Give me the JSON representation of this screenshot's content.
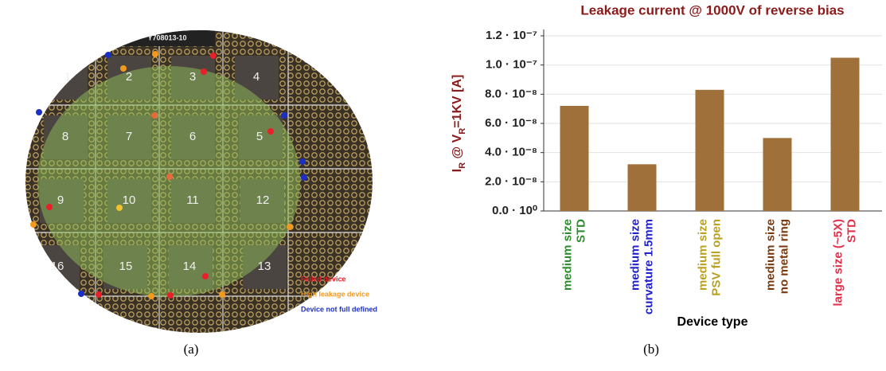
{
  "wafer": {
    "id_label": "Y708013-10",
    "die_labels": [
      "1",
      "2",
      "3",
      "4",
      "8",
      "7",
      "6",
      "5",
      "9",
      "10",
      "11",
      "12",
      "16",
      "15",
      "14",
      "13"
    ],
    "legend": [
      {
        "text": "Failed device",
        "color": "#e8202a"
      },
      {
        "text": "High leakage device",
        "color": "#f29a1e"
      },
      {
        "text": "Device not full defined",
        "color": "#1c2fc4"
      }
    ],
    "caption": "(a)"
  },
  "chart_data": {
    "type": "bar",
    "title": "Leakage current @ 1000V of reverse bias",
    "y_label_parts": [
      "I",
      "R",
      " @ V",
      "R",
      "=1KV [A]"
    ],
    "x_label": "Device type",
    "categories": [
      [
        "medium size",
        "STD"
      ],
      [
        "medium size",
        "curvature 1.5mm"
      ],
      [
        "medium size",
        "PSV full open"
      ],
      [
        "medium size",
        "no metal ring"
      ],
      [
        "large size (~5X)",
        "STD"
      ]
    ],
    "category_colors": [
      "#2e8b2e",
      "#2222cc",
      "#b8a020",
      "#7a3a10",
      "#e0304a"
    ],
    "values": [
      7.2e-08,
      3.2e-08,
      8.3e-08,
      5e-08,
      1.05e-07
    ],
    "color": "#a0703a",
    "ylim": [
      0,
      1.2e-07
    ],
    "yticks": [
      {
        "value": 0,
        "label": "0.0 · 10⁰"
      },
      {
        "value": 2e-08,
        "label": "2.0 · 10⁻⁸"
      },
      {
        "value": 4e-08,
        "label": "4.0 · 10⁻⁸"
      },
      {
        "value": 6e-08,
        "label": "6.0 · 10⁻⁸"
      },
      {
        "value": 8e-08,
        "label": "8.0 · 10⁻⁸"
      },
      {
        "value": 1e-07,
        "label": "1.0 · 10⁻⁷"
      },
      {
        "value": 1.2e-07,
        "label": "1.2 · 10⁻⁷"
      }
    ],
    "grid": true,
    "caption": "(b)"
  }
}
